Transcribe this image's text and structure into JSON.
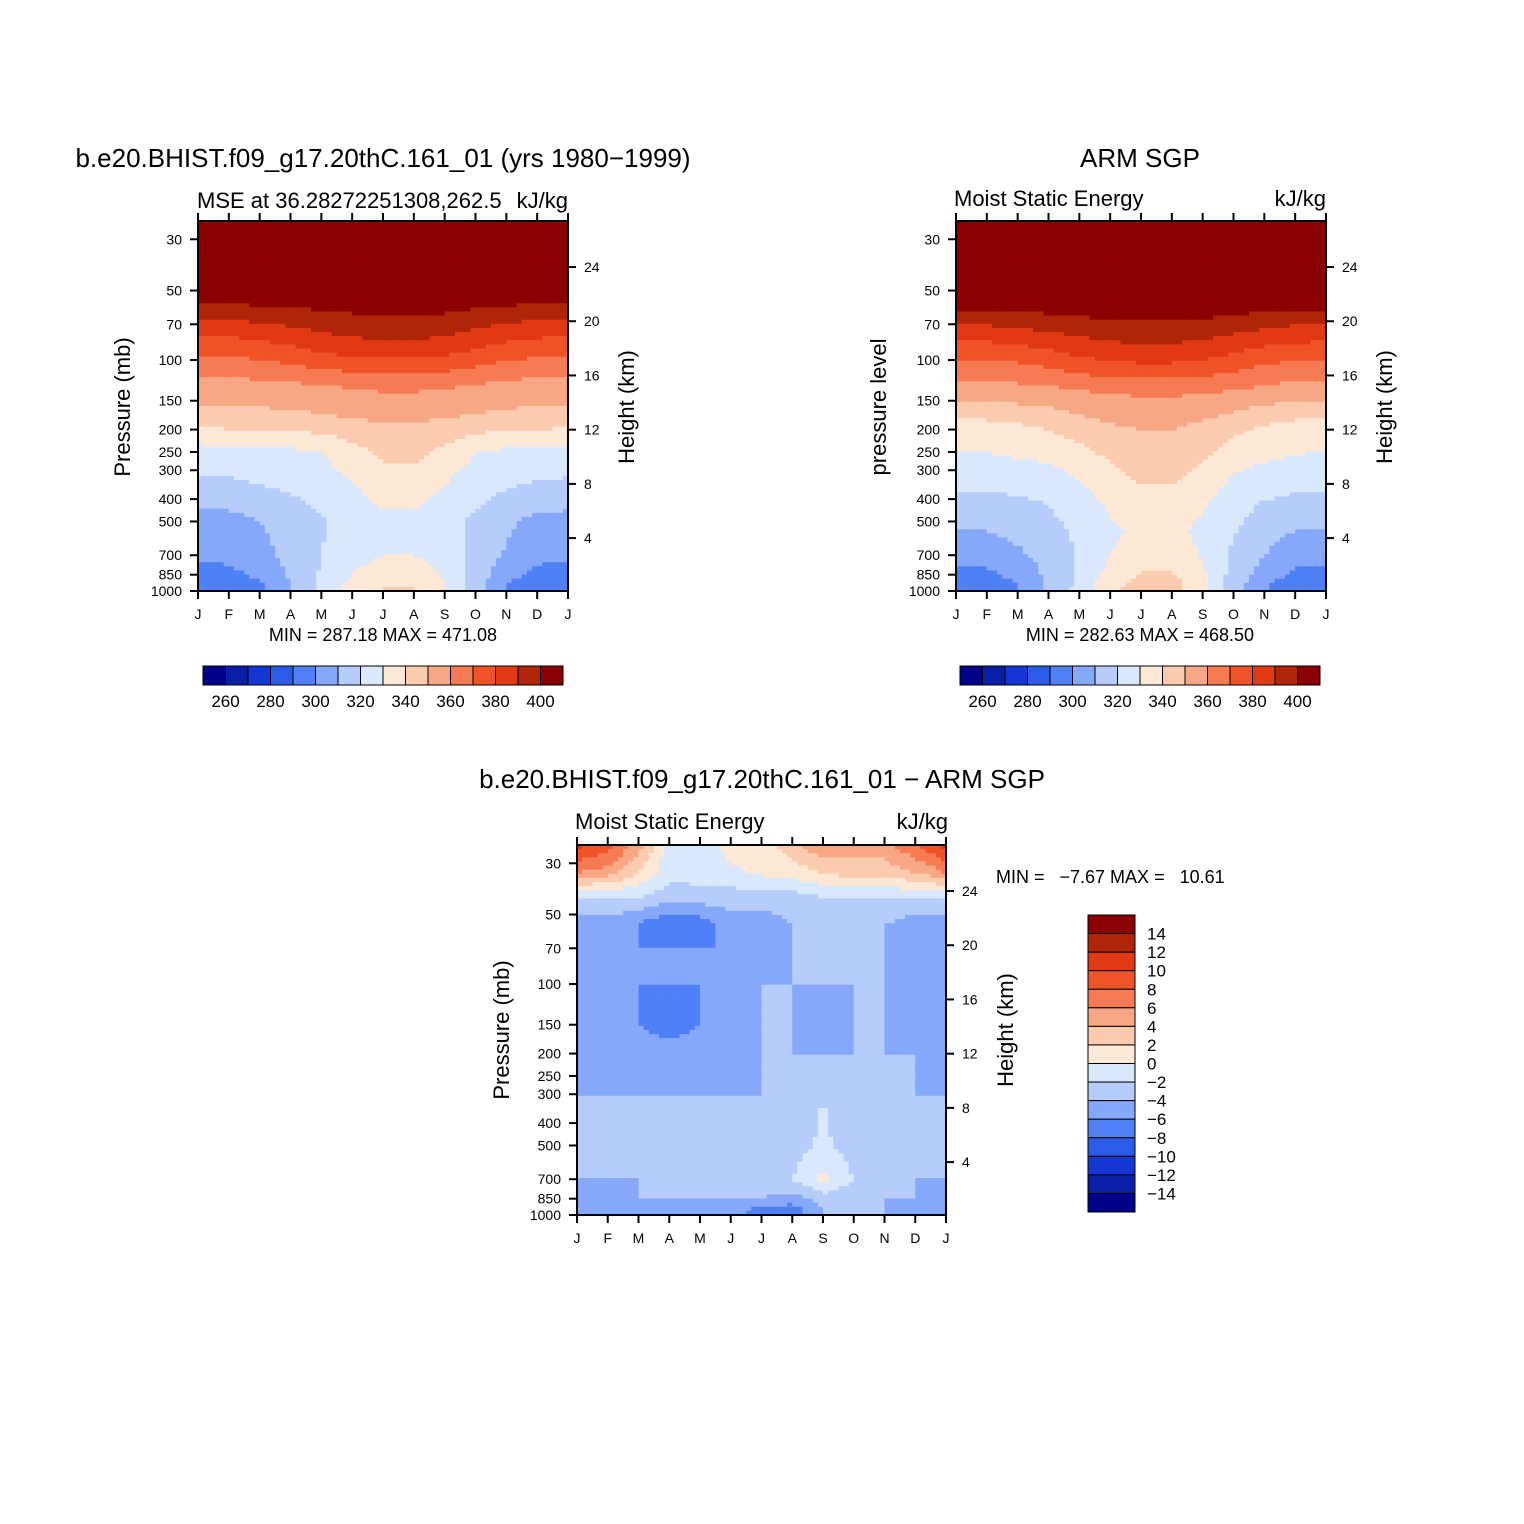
{
  "palette": {
    "abs": [
      "#00008b",
      "#0a1fa8",
      "#1436d4",
      "#2b5ce8",
      "#4f80f5",
      "#86a8fa",
      "#b6cdfc",
      "#d9e8fd",
      "#fde8d6",
      "#fbcbaf",
      "#f8a785",
      "#f67a52",
      "#f05327",
      "#e03913",
      "#b02407",
      "#8b0000"
    ],
    "diff": [
      "#00008b",
      "#0a1fa8",
      "#1436d4",
      "#2b5ce8",
      "#4f80f5",
      "#86a8fa",
      "#b6cdfc",
      "#d9e8fd",
      "#fde8d6",
      "#fbcbaf",
      "#f8a785",
      "#f67a52",
      "#f05327",
      "#e03913",
      "#b02407",
      "#8b0000"
    ]
  },
  "panels": [
    {
      "key": "model",
      "main_title": "b.e20.BHIST.f09_g17.20thC.161_01 (yrs 1980−1999)",
      "left_subtitle": "MSE at 36.28272251308,262.5",
      "right_subtitle": "kJ/kg",
      "ylabel": "Pressure (mb)",
      "ylabel_right": "Height (km)",
      "minmax": "MIN = 287.18 MAX = 471.08",
      "colorbar_labels": [
        "260",
        "280",
        "300",
        "320",
        "340",
        "360",
        "380",
        "400"
      ]
    },
    {
      "key": "obs",
      "main_title": "ARM SGP",
      "left_subtitle": "Moist Static Energy",
      "right_subtitle": "kJ/kg",
      "ylabel": "pressure level",
      "ylabel_right": "Height (km)",
      "minmax": "MIN = 282.63 MAX = 468.50",
      "colorbar_labels": [
        "260",
        "280",
        "300",
        "320",
        "340",
        "360",
        "380",
        "400"
      ]
    },
    {
      "key": "diff",
      "main_title": "b.e20.BHIST.f09_g17.20thC.161_01 − ARM SGP",
      "left_subtitle": "Moist Static Energy",
      "right_subtitle": "kJ/kg",
      "ylabel": "Pressure (mb)",
      "ylabel_right": "Height (km)",
      "minmax": "MIN =   −7.67 MAX =   10.61",
      "colorbar_labels": [
        "14",
        "12",
        "10",
        "8",
        "6",
        "4",
        "2",
        "0",
        "−2",
        "−4",
        "−6",
        "−8",
        "−10",
        "−12",
        "−14"
      ]
    }
  ],
  "chart_data": [
    {
      "type": "heatmap",
      "title": "b.e20.BHIST.f09_g17.20thC.161_01 (yrs 1980−1999)",
      "subtitle": "MSE at 36.28272251308,262.5",
      "units": "kJ/kg",
      "xlabel": "",
      "ylabel": "Pressure (mb)",
      "ylabel_right": "Height (km)",
      "x_ticks": [
        "J",
        "F",
        "M",
        "A",
        "M",
        "J",
        "J",
        "A",
        "S",
        "O",
        "N",
        "D",
        "J"
      ],
      "y_ticks": [
        30,
        50,
        70,
        100,
        150,
        200,
        250,
        300,
        400,
        500,
        700,
        850,
        1000
      ],
      "y_ticks_right": [
        24,
        20,
        16,
        12,
        8,
        4
      ],
      "y_scale": "log",
      "ylim": [
        1000,
        25
      ],
      "levels": [
        260,
        270,
        280,
        290,
        300,
        310,
        320,
        330,
        340,
        350,
        360,
        370,
        380,
        390,
        400
      ],
      "min": 287.18,
      "max": 471.08,
      "rows": [
        {
          "p": 25,
          "v": [
            460,
            460,
            460,
            460,
            460,
            460,
            460,
            460,
            460,
            460,
            460,
            460,
            460
          ]
        },
        {
          "p": 60,
          "v": [
            396,
            396,
            398,
            399,
            401,
            402,
            403,
            403,
            402,
            400,
            398,
            396,
            396
          ]
        },
        {
          "p": 90,
          "v": [
            373,
            373,
            375,
            378,
            382,
            385,
            386,
            386,
            384,
            380,
            376,
            374,
            373
          ]
        },
        {
          "p": 130,
          "v": [
            356,
            356,
            357,
            358,
            359,
            361,
            362,
            362,
            361,
            359,
            357,
            356,
            356
          ]
        },
        {
          "p": 180,
          "v": [
            345,
            346,
            346,
            347,
            348,
            350,
            351,
            351,
            350,
            348,
            347,
            346,
            345
          ]
        },
        {
          "p": 250,
          "v": [
            326,
            326,
            327,
            328,
            330,
            336,
            342,
            343,
            337,
            330,
            328,
            327,
            326
          ]
        },
        {
          "p": 380,
          "v": [
            316,
            316,
            318,
            320,
            323,
            328,
            333,
            333,
            328,
            323,
            319,
            317,
            316
          ]
        },
        {
          "p": 500,
          "v": [
            306,
            306,
            310,
            314,
            319,
            324,
            328,
            328,
            324,
            318,
            312,
            307,
            306
          ]
        },
        {
          "p": 700,
          "v": [
            302,
            303,
            307,
            313,
            320,
            326,
            330,
            330,
            325,
            317,
            309,
            303,
            302
          ]
        },
        {
          "p": 850,
          "v": [
            296,
            297,
            302,
            311,
            321,
            330,
            336,
            336,
            329,
            315,
            304,
            297,
            296
          ]
        },
        {
          "p": 950,
          "v": [
            291,
            292,
            298,
            310,
            322,
            334,
            340,
            340,
            331,
            314,
            300,
            292,
            291
          ]
        }
      ]
    },
    {
      "type": "heatmap",
      "title": "ARM SGP",
      "subtitle": "Moist Static Energy",
      "units": "kJ/kg",
      "xlabel": "",
      "ylabel": "pressure level",
      "ylabel_right": "Height (km)",
      "x_ticks": [
        "J",
        "F",
        "M",
        "A",
        "M",
        "J",
        "J",
        "A",
        "S",
        "O",
        "N",
        "D",
        "J"
      ],
      "y_ticks": [
        30,
        50,
        70,
        100,
        150,
        200,
        250,
        300,
        400,
        500,
        700,
        850,
        1000
      ],
      "y_ticks_right": [
        24,
        20,
        16,
        12,
        8,
        4
      ],
      "y_scale": "log",
      "ylim": [
        1000,
        25
      ],
      "levels": [
        260,
        270,
        280,
        290,
        300,
        310,
        320,
        330,
        340,
        350,
        360,
        370,
        380,
        390,
        400
      ],
      "min": 282.63,
      "max": 468.5,
      "rows": [
        {
          "p": 25,
          "v": [
            460,
            460,
            460,
            460,
            460,
            460,
            460,
            460,
            460,
            460,
            460,
            460,
            460
          ]
        },
        {
          "p": 65,
          "v": [
            395,
            395,
            397,
            398,
            400,
            401,
            402,
            402,
            401,
            399,
            397,
            395,
            395
          ]
        },
        {
          "p": 95,
          "v": [
            372,
            372,
            374,
            377,
            381,
            384,
            385,
            385,
            383,
            379,
            375,
            373,
            372
          ]
        },
        {
          "p": 140,
          "v": [
            354,
            354,
            355,
            356,
            358,
            360,
            361,
            361,
            360,
            358,
            356,
            354,
            354
          ]
        },
        {
          "p": 200,
          "v": [
            334,
            335,
            337,
            340,
            344,
            348,
            350,
            350,
            347,
            342,
            338,
            335,
            334
          ]
        },
        {
          "p": 300,
          "v": [
            326,
            326,
            327,
            328,
            332,
            338,
            343,
            343,
            338,
            331,
            328,
            327,
            326
          ]
        },
        {
          "p": 420,
          "v": [
            316,
            316,
            318,
            320,
            325,
            332,
            336,
            336,
            331,
            324,
            319,
            317,
            316
          ]
        },
        {
          "p": 550,
          "v": [
            309,
            310,
            313,
            317,
            322,
            328,
            332,
            332,
            328,
            321,
            314,
            310,
            309
          ]
        },
        {
          "p": 700,
          "v": [
            303,
            304,
            308,
            314,
            321,
            330,
            336,
            336,
            329,
            318,
            310,
            304,
            303
          ]
        },
        {
          "p": 850,
          "v": [
            297,
            298,
            303,
            312,
            322,
            334,
            341,
            341,
            332,
            316,
            305,
            298,
            297
          ]
        },
        {
          "p": 960,
          "v": [
            292,
            293,
            299,
            311,
            323,
            338,
            344,
            344,
            334,
            315,
            301,
            293,
            292
          ]
        }
      ]
    },
    {
      "type": "heatmap",
      "title": "b.e20.BHIST.f09_g17.20thC.161_01 − ARM SGP",
      "subtitle": "Moist Static Energy",
      "units": "kJ/kg",
      "xlabel": "",
      "ylabel": "Pressure (mb)",
      "ylabel_right": "Height (km)",
      "x_ticks": [
        "J",
        "F",
        "M",
        "A",
        "M",
        "J",
        "J",
        "A",
        "S",
        "O",
        "N",
        "D",
        "J"
      ],
      "y_ticks": [
        30,
        50,
        70,
        100,
        150,
        200,
        250,
        300,
        400,
        500,
        700,
        850,
        1000
      ],
      "y_ticks_right": [
        24,
        20,
        16,
        12,
        8,
        4
      ],
      "y_scale": "log",
      "ylim": [
        1000,
        25
      ],
      "levels": [
        -14,
        -12,
        -10,
        -8,
        -6,
        -4,
        -2,
        0,
        2,
        4,
        6,
        8,
        10,
        12,
        14
      ],
      "min": -7.67,
      "max": 10.61,
      "rows": [
        {
          "p": 25,
          "v": [
            10.6,
            9,
            5,
            -1,
            -2,
            1,
            1,
            3,
            6,
            5,
            5,
            8,
            10.6
          ]
        },
        {
          "p": 33,
          "v": [
            6,
            5,
            2,
            -1.5,
            -1,
            -0.5,
            0.5,
            1,
            2,
            3,
            3,
            4,
            6
          ]
        },
        {
          "p": 42,
          "v": [
            -2,
            -2,
            -2,
            -3,
            -3,
            -3,
            -3,
            -3,
            -2,
            -2,
            -2,
            -2,
            -2
          ]
        },
        {
          "p": 55,
          "v": [
            -5,
            -5,
            -6,
            -8,
            -7,
            -5,
            -5,
            -4,
            -4,
            -4,
            -4,
            -5,
            -5
          ]
        },
        {
          "p": 70,
          "v": [
            -6,
            -6,
            -6,
            -6,
            -6,
            -6,
            -5,
            -4,
            -4,
            -4,
            -4,
            -5,
            -6
          ]
        },
        {
          "p": 100,
          "v": [
            -4,
            -5,
            -6,
            -6,
            -6,
            -5,
            -4,
            -4,
            -4,
            -4,
            -4,
            -5,
            -4
          ]
        },
        {
          "p": 150,
          "v": [
            -6,
            -6,
            -6,
            -7,
            -6,
            -5,
            -4,
            -4,
            -5,
            -4,
            -4,
            -6,
            -6
          ]
        },
        {
          "p": 200,
          "v": [
            -6,
            -6,
            -5,
            -5,
            -5,
            -5,
            -4,
            -4,
            -4,
            -4,
            -4,
            -4,
            -6
          ]
        },
        {
          "p": 300,
          "v": [
            -4,
            -4,
            -4,
            -4,
            -4,
            -4,
            -4,
            -4,
            -2,
            -4,
            -4,
            -4,
            -4
          ]
        },
        {
          "p": 500,
          "v": [
            -4,
            -4,
            -4,
            -4,
            -4,
            -4,
            -4,
            -3,
            -1.5,
            -3,
            -4,
            -4,
            -4
          ]
        },
        {
          "p": 700,
          "v": [
            -4,
            -4,
            -4,
            -4,
            -3.5,
            -2,
            -3,
            -2,
            0.5,
            -2,
            -4,
            -4,
            -4
          ]
        },
        {
          "p": 850,
          "v": [
            -5,
            -5,
            -4,
            -4,
            -4,
            -4,
            -4,
            -5,
            -3,
            -4,
            -4,
            -4,
            -5
          ]
        },
        {
          "p": 950,
          "v": [
            -6,
            -5,
            -5,
            -5,
            -4,
            -5,
            -7,
            -7,
            -4,
            -4,
            -4,
            -5,
            -6
          ]
        }
      ]
    }
  ]
}
